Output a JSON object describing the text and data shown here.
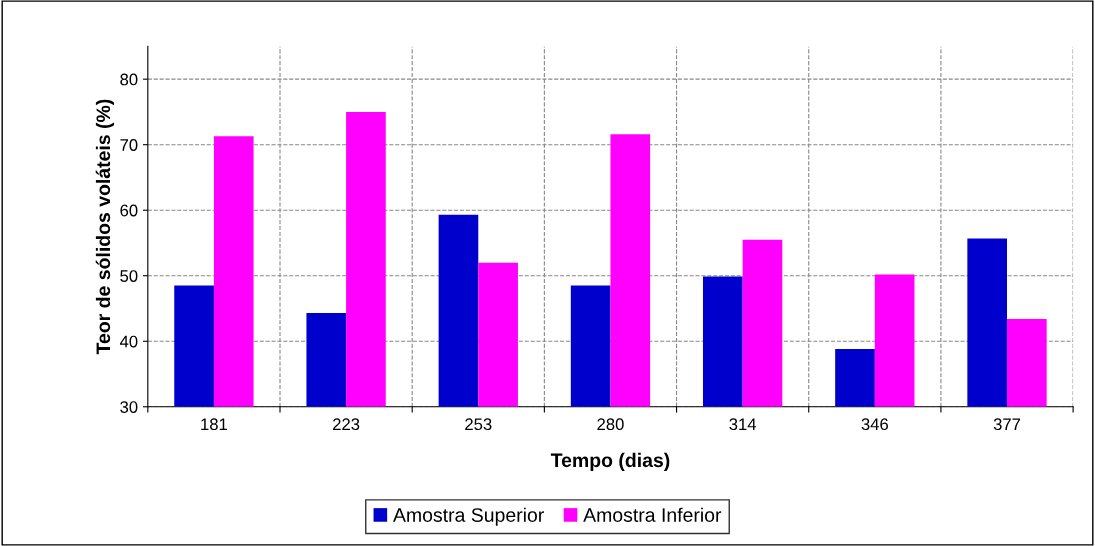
{
  "chart_data": {
    "type": "bar",
    "xlabel": "Tempo (dias)",
    "ylabel": "Teor de sólidos voláteis (%)",
    "categories": [
      "181",
      "223",
      "253",
      "280",
      "314",
      "346",
      "377"
    ],
    "series": [
      {
        "name": "Amostra Superior",
        "color": "#0000cc",
        "values": [
          48.5,
          44.3,
          59.3,
          48.5,
          49.9,
          38.8,
          55.7
        ]
      },
      {
        "name": "Amostra Inferior",
        "color": "#ff00ff",
        "values": [
          71.3,
          75.0,
          52.0,
          71.6,
          55.5,
          50.2,
          43.4
        ]
      }
    ],
    "ylim": [
      30,
      85
    ],
    "yticks": [
      30,
      40,
      50,
      60,
      70,
      80
    ],
    "grid": true,
    "legend": "bottom"
  }
}
